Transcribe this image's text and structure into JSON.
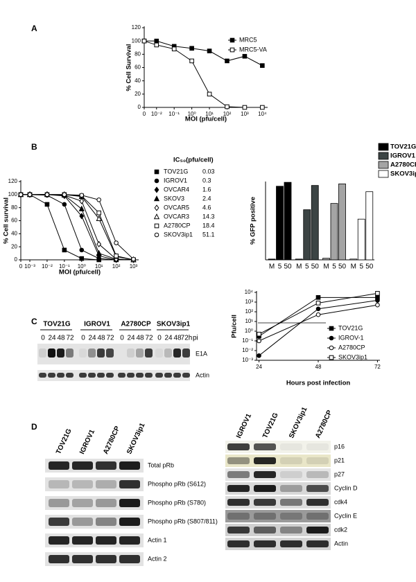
{
  "panels": [
    "A",
    "B",
    "C",
    "D"
  ],
  "chart_data": [
    {
      "type": "line",
      "xlabel": "MOI (pfu/cell)",
      "ylabel": "% Cell Survival",
      "xscale": "log",
      "x": [
        0,
        0.01,
        0.1,
        1,
        10,
        100,
        1000,
        10000
      ],
      "xlim": [
        0.002,
        20000
      ],
      "xticks": [
        0,
        {
          "value": 0.01,
          "label": "10⁻²"
        },
        {
          "value": 0.1,
          "label": "10⁻¹"
        },
        {
          "value": 1,
          "label": "10⁰"
        },
        {
          "value": 10,
          "label": "10¹"
        },
        {
          "value": 100,
          "label": "10²"
        },
        {
          "value": 1000,
          "label": "10³"
        },
        {
          "value": 10000,
          "label": "10⁴"
        }
      ],
      "ylim": [
        0,
        120
      ],
      "yticks": [
        0,
        20,
        40,
        60,
        80,
        100,
        120
      ],
      "series": [
        {
          "name": "MRC5",
          "marker": "square",
          "filled": true,
          "color": "#000",
          "values": [
            100,
            100,
            92,
            89,
            85,
            70,
            77,
            63
          ]
        },
        {
          "name": "MRC5-VA",
          "marker": "square",
          "filled": false,
          "color": "#000",
          "values": [
            100,
            94,
            88,
            70,
            20,
            1,
            0,
            0
          ]
        }
      ]
    },
    {
      "type": "line",
      "xlabel": "MOI (pfu/cell)",
      "ylabel": "% Cell survival",
      "legend_title": "IC₅₀(pfu/cell)",
      "xscale": "log",
      "x": [
        0,
        0.001,
        0.01,
        0.1,
        1,
        10,
        100,
        1000
      ],
      "xlim": [
        0.0003,
        2000
      ],
      "xticks": [
        0,
        {
          "value": 0.001,
          "label": "10⁻³"
        },
        {
          "value": 0.01,
          "label": "10⁻²"
        },
        {
          "value": 0.1,
          "label": "10⁻¹"
        },
        {
          "value": 1,
          "label": "10⁰"
        },
        {
          "value": 10,
          "label": "10¹"
        },
        {
          "value": 100,
          "label": "10²"
        },
        {
          "value": 1000,
          "label": "10³"
        }
      ],
      "ylim": [
        0,
        120
      ],
      "yticks": [
        0,
        20,
        40,
        60,
        80,
        100,
        120
      ],
      "series": [
        {
          "name": "TOV21G",
          "ic50": 0.03,
          "marker": "square",
          "filled": true,
          "color": "#000",
          "values": [
            100,
            100,
            85,
            15,
            2,
            0,
            0,
            0
          ]
        },
        {
          "name": "IGROV1",
          "ic50": 0.3,
          "marker": "circle",
          "filled": true,
          "color": "#000",
          "values": [
            100,
            100,
            99,
            85,
            15,
            2,
            0,
            0
          ]
        },
        {
          "name": "OVCAR4",
          "ic50": 1.6,
          "marker": "diamond",
          "filled": true,
          "color": "#000",
          "values": [
            100,
            100,
            100,
            98,
            67,
            6,
            0,
            0
          ]
        },
        {
          "name": "SKOV3",
          "ic50": 2.4,
          "marker": "triangle",
          "filled": true,
          "color": "#000",
          "values": [
            100,
            100,
            100,
            99,
            78,
            10,
            1,
            0
          ]
        },
        {
          "name": "OVCAR5",
          "ic50": 4.6,
          "marker": "diamond",
          "filled": false,
          "color": "#000",
          "values": [
            100,
            100,
            100,
            99,
            90,
            24,
            1,
            0
          ]
        },
        {
          "name": "OVCAR3",
          "ic50": 14.3,
          "marker": "triangle",
          "filled": false,
          "color": "#000",
          "values": [
            100,
            100,
            100,
            100,
            97,
            63,
            5,
            0
          ]
        },
        {
          "name": "A2780CP",
          "ic50": 18.4,
          "marker": "square",
          "filled": false,
          "color": "#000",
          "values": [
            100,
            100,
            100,
            100,
            98,
            72,
            6,
            0
          ]
        },
        {
          "name": "SKOV3ip1",
          "ic50": 51.1,
          "marker": "circle",
          "filled": false,
          "color": "#000",
          "values": [
            100,
            100,
            100,
            100,
            99,
            92,
            26,
            1
          ]
        }
      ]
    },
    {
      "type": "bar",
      "ylabel": "% GFP positive",
      "categories": [
        "M",
        "5",
        "50"
      ],
      "ylim": [
        0,
        100
      ],
      "series": [
        {
          "name": "TOV21G",
          "color": "#000000",
          "values": [
            1,
            94,
            99
          ]
        },
        {
          "name": "IGROV1",
          "color": "#3c4444",
          "values": [
            1,
            64,
            95
          ]
        },
        {
          "name": "A2780CP",
          "color": "#a4a4a4",
          "values": [
            2,
            72,
            97
          ]
        },
        {
          "name": "SKOV3ip1",
          "color": "#ffffff",
          "values": [
            1,
            52,
            87
          ]
        }
      ]
    },
    {
      "type": "line",
      "xlabel": "Hours post infection",
      "ylabel": "Pfu/cell",
      "yscale": "log",
      "x": [
        24,
        48,
        72
      ],
      "xlim": [
        23,
        73
      ],
      "xticks": [
        24,
        48,
        72
      ],
      "ylim": [
        0.001,
        10000
      ],
      "yticks": [
        {
          "value": 0.001,
          "label": "10⁻³"
        },
        {
          "value": 0.01,
          "label": "10⁻²"
        },
        {
          "value": 0.1,
          "label": "10⁻¹"
        },
        {
          "value": 1,
          "label": "10⁰"
        },
        {
          "value": 10,
          "label": "10¹"
        },
        {
          "value": 100,
          "label": "10²"
        },
        {
          "value": 1000,
          "label": "10³"
        },
        {
          "value": 10000,
          "label": "10⁴"
        }
      ],
      "series": [
        {
          "name": "TOV21G",
          "marker": "square",
          "filled": true,
          "color": "#000",
          "values": [
            0.3,
            3000,
            3000
          ]
        },
        {
          "name": "IGROV-1",
          "marker": "circle",
          "filled": true,
          "color": "#000",
          "values": [
            0.003,
            200,
            1500
          ]
        },
        {
          "name": "A2780CP",
          "marker": "circle",
          "filled": false,
          "color": "#000",
          "values": [
            0.1,
            50,
            500
          ]
        },
        {
          "name": "SKOV3ip1",
          "marker": "square",
          "filled": false,
          "color": "#000",
          "values": [
            0.5,
            800,
            8000
          ]
        }
      ]
    }
  ],
  "blot_c": {
    "cell_lines": [
      "TOV21G",
      "IGROV1",
      "A2780CP",
      "SKOV3ip1"
    ],
    "lanes": [
      [
        "0",
        "24",
        "48",
        "72"
      ],
      [
        "0",
        "24",
        "48",
        "72"
      ],
      [
        "0",
        "24",
        "48",
        "72"
      ],
      [
        "0",
        "24",
        "48",
        "72h"
      ]
    ],
    "suffix": "pi",
    "bands": [
      "E1A",
      "Actin"
    ]
  },
  "blot_d_left": {
    "cell_lines": [
      "TOV21G",
      "IGROV1",
      "A2780CP",
      "SKOV3ip1"
    ],
    "bands": [
      "Total pRb",
      "Phospho pRb (S612)",
      "Phospho pRb (S780)",
      "Phospho pRb (S807/811)",
      "Actin 1",
      "Actin 2"
    ]
  },
  "blot_d_right": {
    "cell_lines": [
      "IGROV1",
      "TOV21G",
      "SKOV3ip1",
      "A2780CP"
    ],
    "bands": [
      "p16",
      "p21",
      "p27",
      "Cyclin D",
      "cdk4",
      "Cyclin E",
      "cdk2",
      "Actin"
    ]
  }
}
